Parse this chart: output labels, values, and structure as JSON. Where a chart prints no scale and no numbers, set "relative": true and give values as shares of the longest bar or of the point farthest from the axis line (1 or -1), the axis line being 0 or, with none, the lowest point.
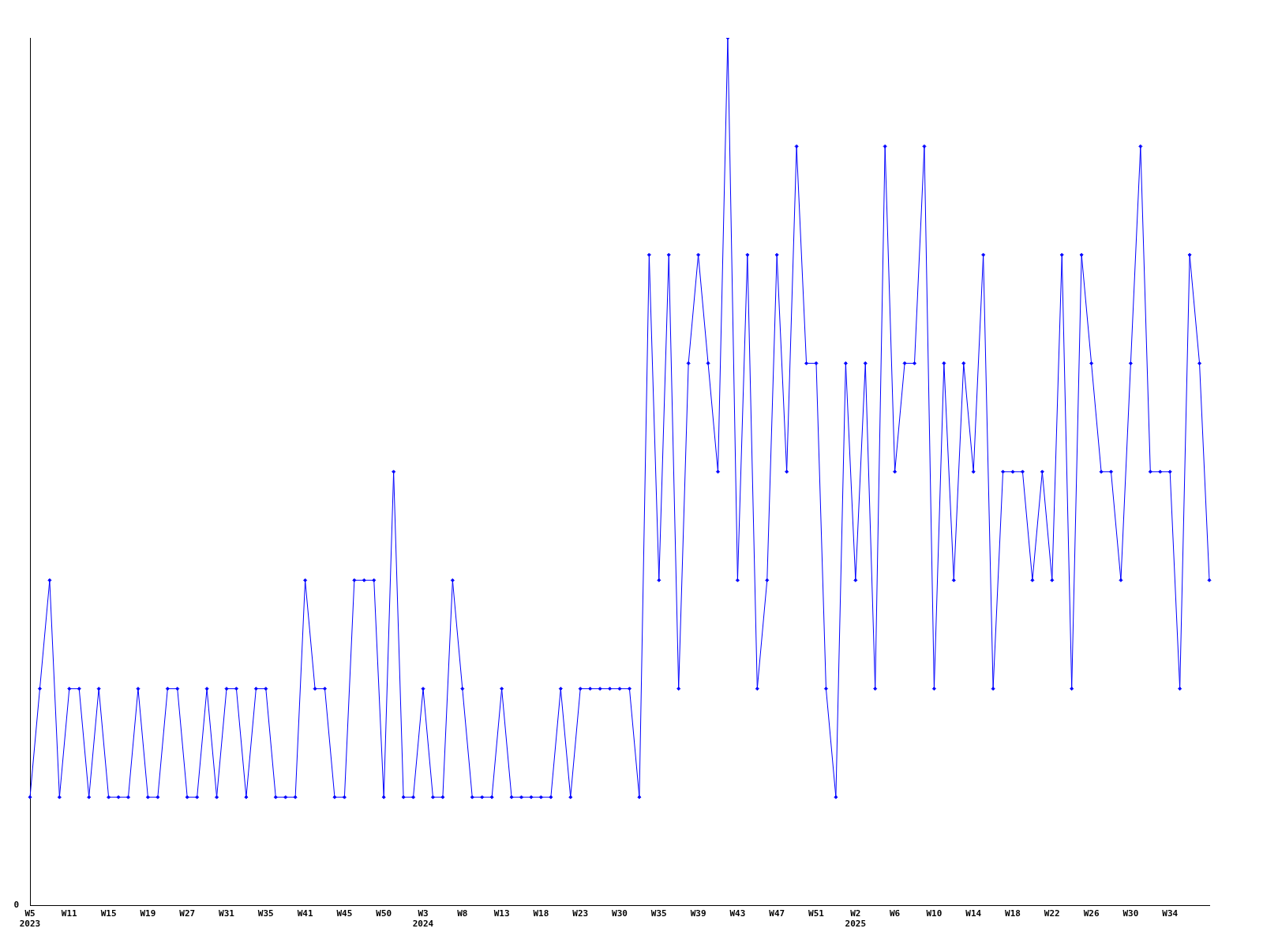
{
  "chart_data": {
    "type": "line",
    "relative": true,
    "categories": [
      "W5\n2023",
      null,
      null,
      null,
      "W11",
      null,
      null,
      null,
      "W15",
      null,
      null,
      null,
      "W19",
      null,
      null,
      null,
      "W27",
      null,
      null,
      null,
      "W31",
      null,
      null,
      null,
      "W35",
      null,
      null,
      null,
      "W41",
      null,
      null,
      null,
      "W45",
      null,
      null,
      null,
      "W50",
      null,
      null,
      null,
      "W3\n2024",
      null,
      null,
      null,
      "W8",
      null,
      null,
      null,
      "W13",
      null,
      null,
      null,
      "W18",
      null,
      null,
      null,
      "W23",
      null,
      null,
      null,
      "W30",
      null,
      null,
      null,
      "W35",
      null,
      null,
      null,
      "W39",
      null,
      null,
      null,
      "W43",
      null,
      null,
      null,
      "W47",
      null,
      null,
      null,
      "W51",
      null,
      null,
      null,
      "W2\n2025",
      null,
      null,
      null,
      "W6",
      null,
      null,
      null,
      "W10",
      null,
      null,
      null,
      "W14",
      null,
      null,
      null,
      "W18",
      null,
      null,
      null,
      "W22",
      null,
      null,
      null,
      "W26",
      null,
      null,
      null,
      "W30",
      null,
      null,
      null,
      "W34",
      null,
      null,
      null,
      null
    ],
    "series": [
      {
        "color": "#0000ff",
        "values": [
          0.125,
          0.25,
          0.375,
          0.125,
          0.25,
          0.25,
          0.125,
          0.25,
          0.125,
          0.125,
          0.125,
          0.25,
          0.125,
          0.125,
          0.25,
          0.25,
          0.125,
          0.125,
          0.25,
          0.125,
          0.25,
          0.25,
          0.125,
          0.25,
          0.25,
          0.125,
          0.125,
          0.125,
          0.375,
          0.25,
          0.25,
          0.125,
          0.125,
          0.375,
          0.375,
          0.375,
          0.125,
          0.5,
          0.125,
          0.125,
          0.25,
          0.125,
          0.125,
          0.375,
          0.25,
          0.125,
          0.125,
          0.125,
          0.25,
          0.125,
          0.125,
          0.125,
          0.125,
          0.125,
          0.25,
          0.125,
          0.25,
          0.25,
          0.25,
          0.25,
          0.25,
          0.25,
          0.125,
          0.75,
          0.375,
          0.75,
          0.25,
          0.625,
          0.75,
          0.625,
          0.5,
          1,
          0.375,
          0.75,
          0.25,
          0.375,
          0.75,
          0.5,
          0.875,
          0.625,
          0.625,
          0.25,
          0.125,
          0.625,
          0.375,
          0.625,
          0.25,
          0.875,
          0.5,
          0.625,
          0.625,
          0.875,
          0.25,
          0.625,
          0.375,
          0.625,
          0.5,
          0.75,
          0.25,
          0.5,
          0.5,
          0.5,
          0.375,
          0.5,
          0.375,
          0.75,
          0.25,
          0.75,
          0.625,
          0.5,
          0.5,
          0.375,
          0.625,
          0.875,
          0.5,
          0.5,
          0.5,
          0.25,
          0.75,
          0.625,
          0.375
        ]
      }
    ],
    "annotations": [
      "0"
    ],
    "grid": false,
    "legend": false,
    "marker": "diamond",
    "line_style": "solid"
  }
}
